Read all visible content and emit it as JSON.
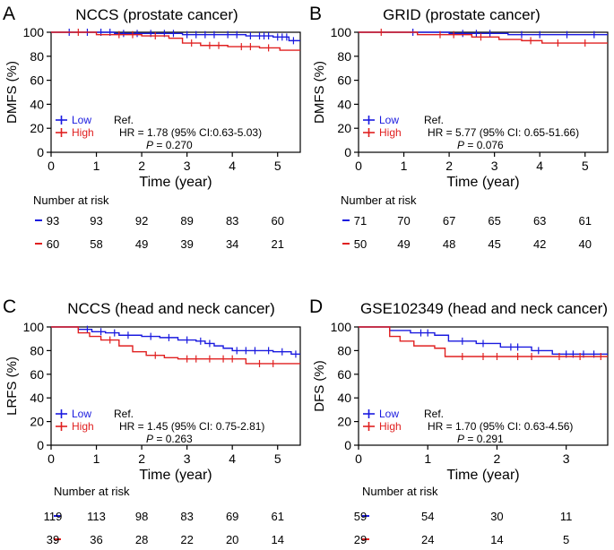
{
  "colors": {
    "low": "#1a1adf",
    "high": "#e02020",
    "axis": "#000000"
  },
  "chart_data": [
    {
      "type": "line",
      "panel_letter": "A",
      "title": "NCCS (prostate cancer)",
      "ylabel": "DMFS (%)",
      "xlabel": "Time (year)",
      "xlim": [
        0,
        5.5
      ],
      "ylim": [
        0,
        100
      ],
      "xticks": [
        0,
        1,
        2,
        3,
        4,
        5
      ],
      "yticks": [
        0,
        20,
        40,
        60,
        80,
        100
      ],
      "series": [
        {
          "name": "Low",
          "group": "low",
          "steps": [
            [
              0,
              100
            ],
            [
              1.4,
              99
            ],
            [
              2.9,
              98
            ],
            [
              4.3,
              97
            ],
            [
              4.9,
              96
            ],
            [
              5.25,
              93
            ],
            [
              5.5,
              93
            ]
          ],
          "censors": [
            0.4,
            0.8,
            1.1,
            1.3,
            1.6,
            1.9,
            2.2,
            2.5,
            2.7,
            3.0,
            3.2,
            3.4,
            3.6,
            3.9,
            4.1,
            4.4,
            4.6,
            4.7,
            4.8,
            5.0,
            5.1,
            5.2,
            5.35
          ]
        },
        {
          "name": "High",
          "group": "high",
          "steps": [
            [
              0,
              100
            ],
            [
              1.0,
              98
            ],
            [
              2.0,
              97
            ],
            [
              2.6,
              95
            ],
            [
              2.9,
              91
            ],
            [
              3.3,
              89
            ],
            [
              3.9,
              88
            ],
            [
              4.6,
              87
            ],
            [
              5.05,
              85
            ],
            [
              5.5,
              85
            ]
          ],
          "censors": [
            0.6,
            1.5,
            1.8,
            2.3,
            3.1,
            3.5,
            3.7,
            4.2,
            4.4,
            4.8
          ]
        }
      ],
      "legend": {
        "low": "Low",
        "high": "High",
        "ref": "Ref.",
        "hr": "HR = 1.78 (95% CI:0.63-5.03)",
        "p_label": "P",
        "p_value": " = 0.270"
      },
      "risk": {
        "title": "Number at risk",
        "times": [
          0,
          1,
          2,
          3,
          4,
          5
        ],
        "low": [
          "93",
          "93",
          "92",
          "89",
          "83",
          "60"
        ],
        "high": [
          "60",
          "58",
          "49",
          "39",
          "34",
          "21"
        ]
      }
    },
    {
      "type": "line",
      "panel_letter": "B",
      "title": "GRID (prostate cancer)",
      "ylabel": "DMFS (%)",
      "xlabel": "Time (year)",
      "xlim": [
        0,
        5.5
      ],
      "ylim": [
        0,
        100
      ],
      "xticks": [
        0,
        1,
        2,
        3,
        4,
        5
      ],
      "yticks": [
        0,
        20,
        40,
        60,
        80,
        100
      ],
      "series": [
        {
          "name": "Low",
          "group": "low",
          "steps": [
            [
              0,
              100
            ],
            [
              2.0,
              99
            ],
            [
              3.3,
              98
            ],
            [
              5.5,
              98
            ]
          ],
          "censors": [
            1.2,
            2.3,
            2.6,
            2.9,
            3.6,
            4.0,
            4.6,
            5.2
          ]
        },
        {
          "name": "High",
          "group": "high",
          "steps": [
            [
              0,
              100
            ],
            [
              1.3,
              98
            ],
            [
              2.5,
              96
            ],
            [
              3.1,
              94
            ],
            [
              3.6,
              93
            ],
            [
              4.05,
              91
            ],
            [
              5.5,
              91
            ]
          ],
          "censors": [
            0.5,
            1.8,
            2.1,
            2.7,
            3.8,
            4.4,
            5.0
          ]
        }
      ],
      "legend": {
        "low": "Low",
        "high": "High",
        "ref": "Ref.",
        "hr": "HR = 5.77 (95% CI: 0.65-51.66)",
        "p_label": "P",
        "p_value": " = 0.076"
      },
      "risk": {
        "title": "Number at risk",
        "times": [
          0,
          1,
          2,
          3,
          4,
          5
        ],
        "low": [
          "71",
          "70",
          "67",
          "65",
          "63",
          "61"
        ],
        "high": [
          "50",
          "49",
          "48",
          "45",
          "42",
          "40"
        ]
      }
    },
    {
      "type": "line",
      "panel_letter": "C",
      "title": "NCCS (head and neck cancer)",
      "ylabel": "LRFS (%)",
      "xlabel": "Time (year)",
      "xlim": [
        0,
        5.5
      ],
      "ylim": [
        0,
        100
      ],
      "xticks": [
        0,
        1,
        2,
        3,
        4,
        5
      ],
      "yticks": [
        0,
        20,
        40,
        60,
        80,
        100
      ],
      "series": [
        {
          "name": "Low",
          "group": "low",
          "steps": [
            [
              0,
              100
            ],
            [
              0.6,
              98
            ],
            [
              0.9,
              96
            ],
            [
              1.2,
              95
            ],
            [
              1.5,
              93
            ],
            [
              2.0,
              92
            ],
            [
              2.4,
              91
            ],
            [
              2.8,
              89
            ],
            [
              3.2,
              88
            ],
            [
              3.4,
              86
            ],
            [
              3.6,
              84
            ],
            [
              3.8,
              82
            ],
            [
              4.0,
              80
            ],
            [
              4.9,
              79
            ],
            [
              5.3,
              77
            ],
            [
              5.5,
              77
            ]
          ],
          "censors": [
            0.8,
            1.1,
            1.4,
            1.7,
            2.2,
            2.6,
            3.0,
            3.3,
            3.5,
            4.1,
            4.3,
            4.5,
            4.8,
            5.1,
            5.4
          ]
        },
        {
          "name": "High",
          "group": "high",
          "steps": [
            [
              0,
              100
            ],
            [
              0.6,
              95
            ],
            [
              0.85,
              92
            ],
            [
              1.1,
              89
            ],
            [
              1.5,
              84
            ],
            [
              1.8,
              79
            ],
            [
              2.1,
              76
            ],
            [
              2.5,
              74
            ],
            [
              2.8,
              73
            ],
            [
              4.3,
              69
            ],
            [
              5.5,
              69
            ]
          ],
          "censors": [
            1.3,
            2.3,
            3.0,
            3.2,
            3.5,
            3.8,
            4.0,
            4.6,
            4.9
          ]
        }
      ],
      "legend": {
        "low": "Low",
        "high": "High",
        "ref": "Ref.",
        "hr": "HR = 1.45 (95% CI: 0.75-2.81)",
        "p_label": "P",
        "p_value": " = 0.263"
      },
      "risk": {
        "title": "Number at risk",
        "times": [
          0,
          1,
          2,
          3,
          4,
          5
        ],
        "low": [
          "119",
          "113",
          "98",
          "83",
          "69",
          "61"
        ],
        "high": [
          "39",
          "36",
          "28",
          "22",
          "20",
          "14"
        ]
      }
    },
    {
      "type": "line",
      "panel_letter": "D",
      "title": "GSE102349 (head and neck cancer)",
      "ylabel": "DFS (%)",
      "xlabel": "Time (year)",
      "xlim": [
        0,
        3.6
      ],
      "ylim": [
        0,
        100
      ],
      "xticks": [
        0,
        1,
        2,
        3
      ],
      "yticks": [
        0,
        20,
        40,
        60,
        80,
        100
      ],
      "series": [
        {
          "name": "Low",
          "group": "low",
          "steps": [
            [
              0,
              100
            ],
            [
              0.45,
              97
            ],
            [
              0.75,
              95
            ],
            [
              1.1,
              93
            ],
            [
              1.3,
              88
            ],
            [
              1.7,
              86
            ],
            [
              2.05,
              83
            ],
            [
              2.5,
              80
            ],
            [
              2.8,
              77
            ],
            [
              3.6,
              77
            ]
          ],
          "censors": [
            0.9,
            1.0,
            1.5,
            1.8,
            2.2,
            2.3,
            2.6,
            3.0,
            3.1,
            3.25,
            3.4
          ]
        },
        {
          "name": "High",
          "group": "high",
          "steps": [
            [
              0,
              100
            ],
            [
              0.45,
              92
            ],
            [
              0.6,
              88
            ],
            [
              0.8,
              84
            ],
            [
              1.1,
              82
            ],
            [
              1.25,
              75
            ],
            [
              3.6,
              75
            ]
          ],
          "censors": [
            1.5,
            1.8,
            2.0,
            2.3,
            2.5,
            2.9,
            3.2,
            3.5
          ]
        }
      ],
      "legend": {
        "low": "Low",
        "high": "High",
        "ref": "Ref.",
        "hr": "HR = 1.70 (95% CI: 0.63-4.56)",
        "p_label": "P",
        "p_value": " = 0.291"
      },
      "risk": {
        "title": "Number at risk",
        "times": [
          0,
          1,
          2,
          3
        ],
        "low": [
          "59",
          "54",
          "30",
          "11"
        ],
        "high": [
          "29",
          "24",
          "14",
          "5"
        ]
      }
    }
  ]
}
